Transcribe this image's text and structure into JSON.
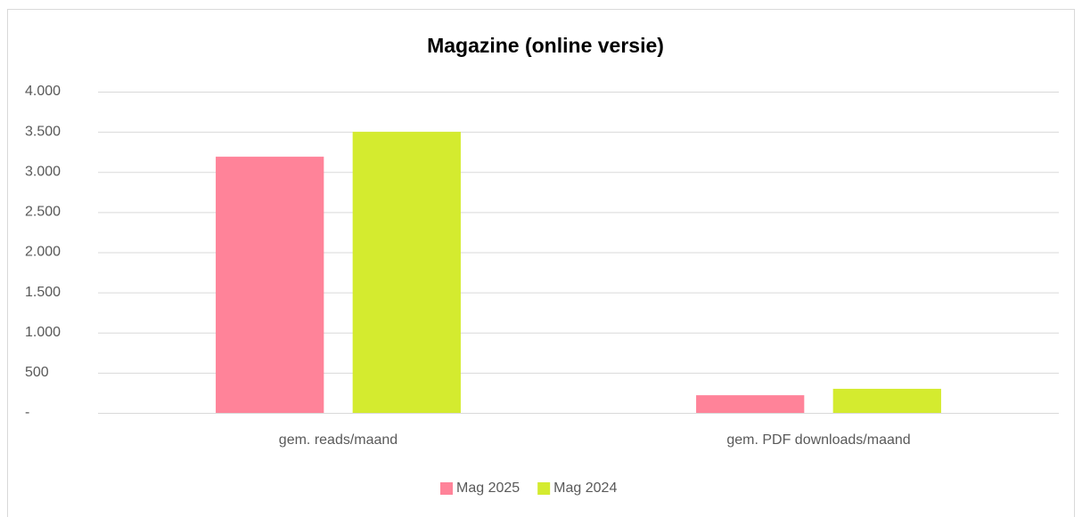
{
  "chart_data": {
    "type": "bar",
    "title": "Magazine (online versie)",
    "categories": [
      "gem. reads/maand",
      "gem. PDF downloads/maand"
    ],
    "series": [
      {
        "name": "Mag 2025",
        "color": "#ff8399",
        "values": [
          3190,
          220
        ]
      },
      {
        "name": "Mag 2024",
        "color": "#d4eb2f",
        "values": [
          3500,
          300
        ]
      }
    ],
    "ylim": [
      0,
      4000
    ],
    "yticks": [
      {
        "value": 0,
        "label": "-"
      },
      500,
      {
        "value": 1000,
        "label": "1.000"
      },
      {
        "value": 1500,
        "label": "1.500"
      },
      {
        "value": 2000,
        "label": "2.000"
      },
      {
        "value": 2500,
        "label": "2.500"
      },
      {
        "value": 3000,
        "label": "3.000"
      },
      {
        "value": 3500,
        "label": "3.500"
      },
      {
        "value": 4000,
        "label": "4.000"
      }
    ],
    "grid": true,
    "legend": "bottom"
  }
}
